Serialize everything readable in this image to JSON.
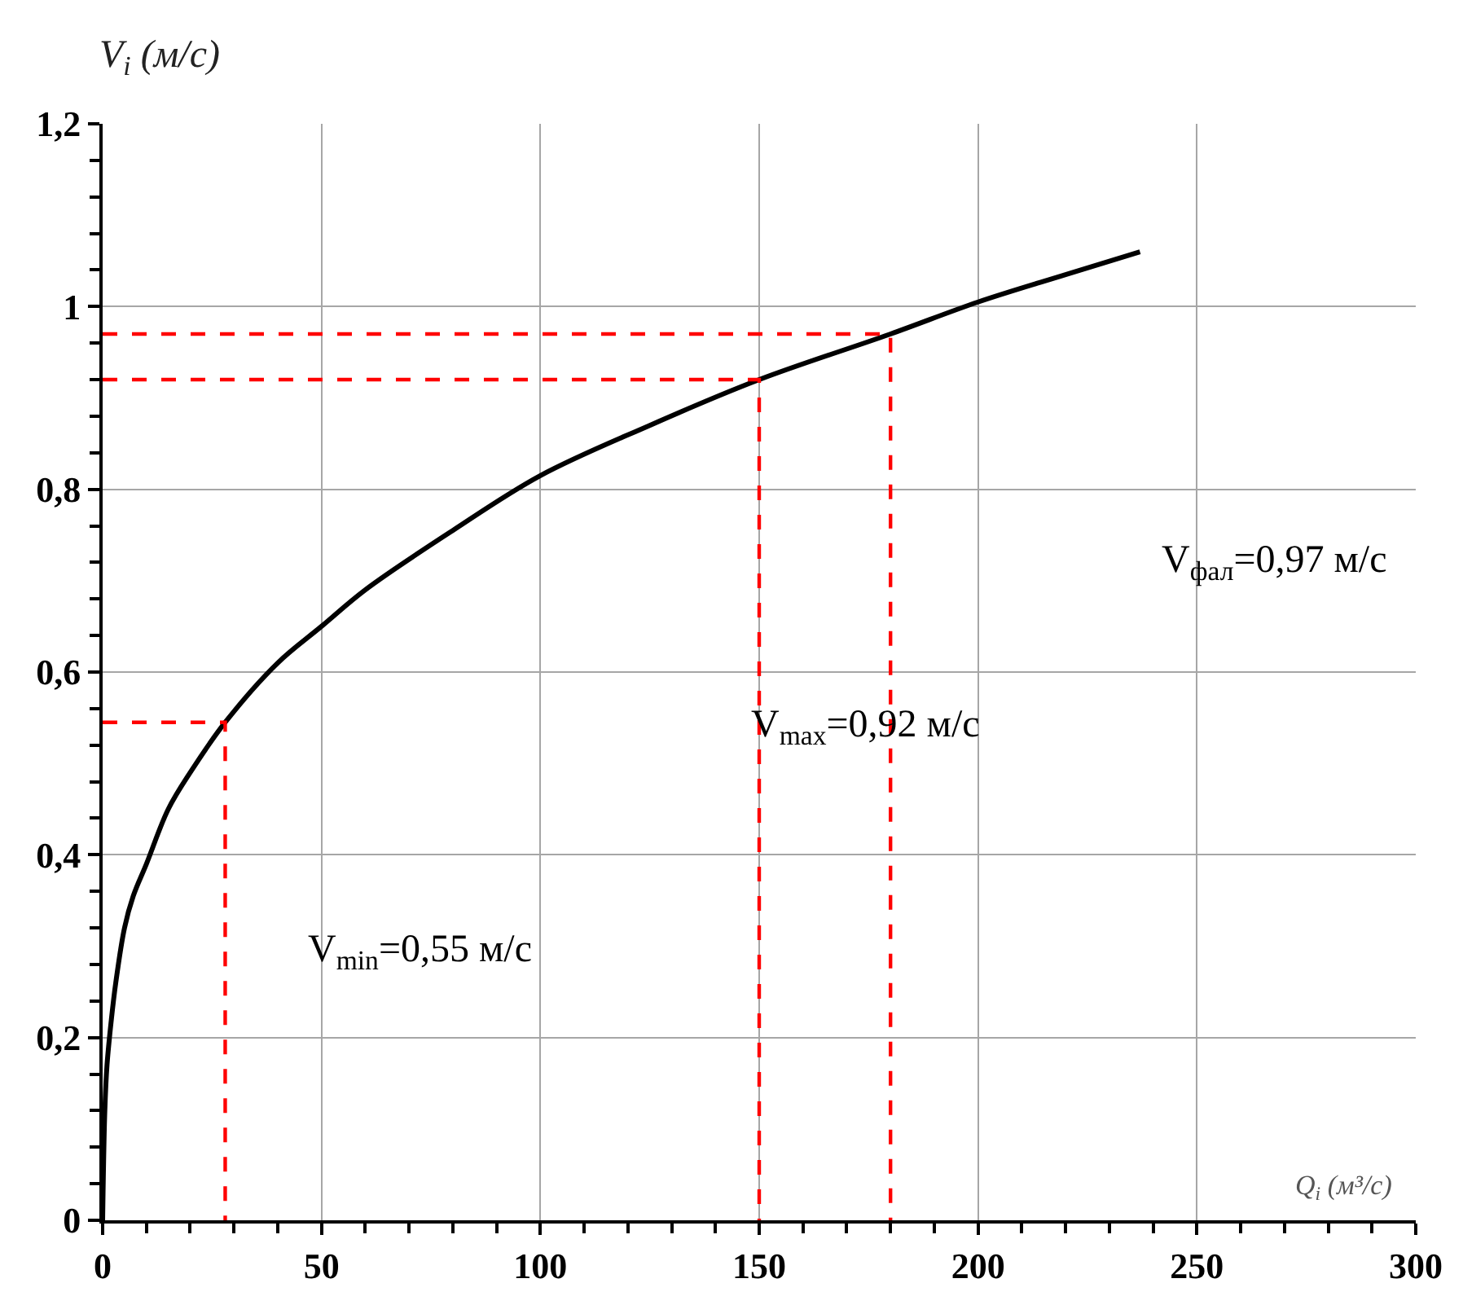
{
  "chart_data": {
    "type": "line",
    "xlabel": "Q$_{i}$ (м³/с)",
    "ylabel": "V$_{i}$ (м/с)",
    "xlim": [
      0,
      300
    ],
    "xticks": [
      0,
      50,
      100,
      150,
      200,
      250,
      300
    ],
    "ylim": [
      0,
      1.2
    ],
    "yticks": [
      0,
      {
        "value": 0.2,
        "label": "0,2"
      },
      {
        "value": 0.4,
        "label": "0,4"
      },
      {
        "value": 0.6,
        "label": "0,6"
      },
      {
        "value": 0.8,
        "label": "0,8"
      },
      1,
      {
        "value": 1.2,
        "label": "1,2"
      }
    ],
    "grid": true,
    "marker": "none",
    "series": [
      {
        "color": "#000000",
        "line_style": "solid",
        "x": [
          0,
          0.5,
          1,
          2,
          3,
          5,
          7,
          10,
          15,
          20,
          28,
          40,
          50,
          60,
          80,
          100,
          125,
          150,
          180,
          200,
          220,
          237
        ],
        "values": [
          0,
          0.12,
          0.17,
          0.22,
          0.26,
          0.32,
          0.355,
          0.39,
          0.45,
          0.49,
          0.545,
          0.61,
          0.65,
          0.69,
          0.755,
          0.815,
          0.87,
          0.92,
          0.97,
          1.005,
          1.035,
          1.06
        ]
      },
      {
        "color": "#ff0000",
        "line_style": "dashed",
        "x": [
          0,
          28,
          28
        ],
        "values": [
          0.545,
          0.545,
          0
        ]
      },
      {
        "color": "#ff0000",
        "line_style": "dashed",
        "x": [
          0,
          150,
          150
        ],
        "values": [
          0.92,
          0.92,
          0
        ]
      },
      {
        "color": "#ff0000",
        "line_style": "dashed",
        "x": [
          0,
          180,
          180
        ],
        "values": [
          0.97,
          0.97,
          0
        ]
      }
    ],
    "annotations": [
      "V$_{min}$=0,55 м/с",
      "V$_{max}$=0,92 м/с",
      "V$_{фал}$=0,97 м/с"
    ]
  }
}
